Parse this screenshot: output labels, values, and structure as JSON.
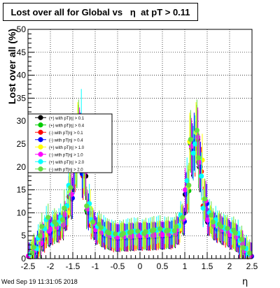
{
  "chart_data": {
    "type": "scatter",
    "title": "Lost over all for Global vs   η  at pT > 0.11",
    "xlabel": "η",
    "ylabel": "Lost over all (%)",
    "xlim": [
      -2.5,
      2.5
    ],
    "ylim": [
      0,
      50
    ],
    "x_ticks": [
      "-2.5",
      "-2",
      "-1.5",
      "-1",
      "-0.5",
      "0",
      "0.5",
      "1",
      "1.5",
      "2",
      "2.5"
    ],
    "y_ticks": [
      "0",
      "5",
      "10",
      "15",
      "20",
      "25",
      "30",
      "35",
      "40",
      "45",
      "50"
    ],
    "grid": true,
    "legend_position": "left",
    "legend_order": [
      0,
      2,
      1,
      3,
      4,
      5,
      6,
      7
    ],
    "x": [
      -2.45,
      -2.35,
      -2.25,
      -2.15,
      -2.05,
      -1.95,
      -1.85,
      -1.75,
      -1.65,
      -1.55,
      -1.45,
      -1.35,
      -1.25,
      -1.15,
      -1.05,
      -0.95,
      -0.85,
      -0.75,
      -0.65,
      -0.55,
      -0.45,
      -0.35,
      -0.25,
      -0.15,
      -0.05,
      0.05,
      0.15,
      0.25,
      0.35,
      0.45,
      0.55,
      0.65,
      0.75,
      0.85,
      0.95,
      1.05,
      1.15,
      1.25,
      1.35,
      1.45,
      1.55,
      1.65,
      1.75,
      1.85,
      1.95,
      2.05,
      2.15,
      2.25,
      2.35,
      2.45
    ],
    "series": [
      {
        "name": "(+) with pT|η| > 0.1",
        "color": "#000000",
        "values": [
          0.5,
          1.5,
          3,
          4.5,
          5.5,
          6,
          6.5,
          7,
          9,
          13,
          20,
          26,
          18,
          10,
          7,
          6,
          5.5,
          5,
          4.8,
          4.5,
          4.5,
          4.6,
          4.6,
          4.7,
          4.8,
          4.8,
          4.8,
          4.8,
          4.9,
          5,
          5,
          5.1,
          5.3,
          6,
          8,
          14,
          24,
          26,
          20,
          12,
          8,
          7,
          6.5,
          6,
          5.5,
          5,
          4.5,
          3,
          1.5,
          0.5
        ]
      },
      {
        "name": "(-) with pT|η| > 0.1",
        "color": "#ff0000",
        "values": [
          0.4,
          1.4,
          2.8,
          4.3,
          5.3,
          5.9,
          6.4,
          7,
          9.2,
          13.5,
          20,
          25,
          18,
          10,
          7.2,
          6.1,
          5.4,
          5,
          4.7,
          4.4,
          4.4,
          4.5,
          4.5,
          4.6,
          4.7,
          4.7,
          4.7,
          4.7,
          4.8,
          4.9,
          5,
          5,
          5.2,
          6,
          8.5,
          14.5,
          23,
          24,
          19,
          11.5,
          8,
          7,
          6.4,
          5.9,
          5.4,
          4.9,
          4.3,
          2.9,
          1.4,
          0.4
        ]
      },
      {
        "name": "(+) with pT|η| > 0.4",
        "color": "#00cc00",
        "values": [
          0.6,
          1.7,
          3.2,
          4.7,
          5.7,
          6.2,
          6.7,
          7.3,
          9.5,
          13.8,
          21,
          27,
          19,
          10.5,
          7.4,
          6.2,
          5.6,
          5.1,
          4.9,
          4.6,
          4.6,
          4.7,
          4.7,
          4.8,
          4.9,
          4.9,
          4.9,
          4.9,
          5,
          5.1,
          5.1,
          5.2,
          5.4,
          6.2,
          8.3,
          14.8,
          25,
          27,
          21,
          12.5,
          8.3,
          7.2,
          6.7,
          6.2,
          5.7,
          5.1,
          4.6,
          3.1,
          1.6,
          0.6
        ]
      },
      {
        "name": "(-) with pT|η| > 0.4",
        "color": "#0000ff",
        "values": [
          0.5,
          1.6,
          3.1,
          4.6,
          5.6,
          6.1,
          6.6,
          7.1,
          9.1,
          13.2,
          19.5,
          25.5,
          18.5,
          10.2,
          7.1,
          6.0,
          5.5,
          5.0,
          4.8,
          4.5,
          4.5,
          4.6,
          4.6,
          4.7,
          4.8,
          4.8,
          4.8,
          4.8,
          4.9,
          5.0,
          5.0,
          5.1,
          5.3,
          6.1,
          8.1,
          14.2,
          23.5,
          25.5,
          20,
          12,
          8,
          7,
          6.5,
          6,
          5.5,
          5,
          4.4,
          3,
          1.5,
          0.5
        ]
      },
      {
        "name": "(+) with pT|η| > 1.0",
        "color": "#ffff00",
        "values": [
          0.7,
          1.9,
          3.5,
          5.2,
          6.2,
          6.6,
          7,
          7.5,
          10,
          14.5,
          21.5,
          27.5,
          19.5,
          11,
          7.8,
          6.5,
          5.8,
          5.3,
          5.1,
          4.8,
          4.8,
          4.9,
          4.9,
          5,
          5.1,
          5.1,
          5.1,
          5.1,
          5.2,
          5.3,
          5.3,
          5.4,
          5.6,
          6.5,
          8.8,
          15.5,
          25.5,
          27.5,
          21.5,
          13,
          8.6,
          7.5,
          7,
          6.5,
          6,
          5.4,
          4.8,
          3.3,
          1.8,
          0.7
        ]
      },
      {
        "name": "(-) with pT|η| > 1.0",
        "color": "#ff00ff",
        "values": [
          0.6,
          1.8,
          3.3,
          5.0,
          6.0,
          6.4,
          6.8,
          7.3,
          9.6,
          14,
          21,
          26.5,
          19,
          10.8,
          7.6,
          6.3,
          5.7,
          5.2,
          5.0,
          4.7,
          4.7,
          4.8,
          4.8,
          4.9,
          5.0,
          5.0,
          5.0,
          5.0,
          5.1,
          5.2,
          5.2,
          5.3,
          5.5,
          6.3,
          8.6,
          15,
          24.5,
          26.5,
          21,
          12.6,
          8.4,
          7.3,
          6.8,
          6.3,
          5.8,
          5.2,
          4.7,
          3.2,
          1.7,
          0.6
        ]
      },
      {
        "name": "(+) with pT|η| > 2.0",
        "color": "#00ffff",
        "values": [
          1.0,
          2.2,
          4.5,
          6.5,
          8.5,
          7.5,
          8,
          9,
          11.5,
          16,
          22,
          30,
          21,
          12,
          8.5,
          7,
          6.5,
          6,
          5.5,
          5.2,
          5.4,
          5.6,
          5.8,
          6,
          5.8,
          5.6,
          5.8,
          6,
          6.2,
          6.4,
          6.2,
          6,
          6,
          7.2,
          9.5,
          17,
          23,
          25,
          18,
          11,
          10,
          8.5,
          7.5,
          6.8,
          6.5,
          6,
          5.5,
          4,
          2.2,
          1
        ]
      },
      {
        "name": "(-) with pT|η| > 2.0",
        "color": "#66dd44",
        "values": [
          1.2,
          2.5,
          5,
          7,
          9,
          8,
          7.5,
          8.5,
          11,
          15.5,
          23,
          28,
          20,
          11.5,
          8,
          7.5,
          6.8,
          5.8,
          5.6,
          5.4,
          5.2,
          5.5,
          5.7,
          5.9,
          6,
          5.5,
          5.9,
          6.1,
          6.3,
          6.5,
          6.0,
          6.2,
          6.1,
          7,
          9,
          16,
          26,
          28,
          22,
          13,
          9.5,
          8,
          7.5,
          7,
          6.6,
          6.2,
          5.6,
          4.2,
          2.4,
          1.2
        ]
      }
    ]
  },
  "footer": {
    "timestamp": "Wed Sep 19 11:31:05 2018"
  }
}
